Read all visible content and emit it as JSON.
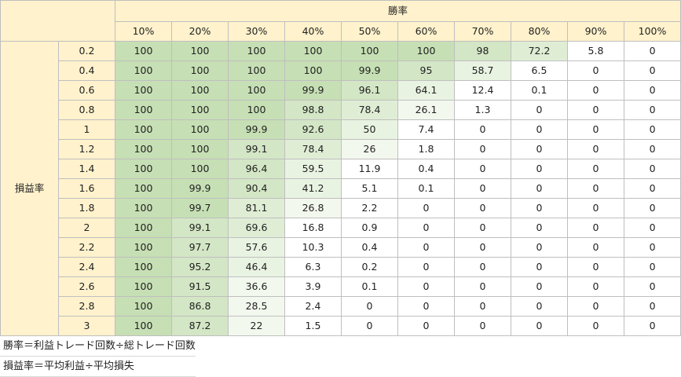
{
  "table": {
    "col_group_label": "勝率",
    "row_group_label": "損益率",
    "columns": [
      "10%",
      "20%",
      "30%",
      "40%",
      "50%",
      "60%",
      "70%",
      "80%",
      "90%",
      "100%"
    ],
    "rows": [
      {
        "ratio": "0.2",
        "values": [
          "100",
          "100",
          "100",
          "100",
          "100",
          "100",
          "98",
          "72.2",
          "5.8",
          "0"
        ]
      },
      {
        "ratio": "0.4",
        "values": [
          "100",
          "100",
          "100",
          "100",
          "99.9",
          "95",
          "58.7",
          "6.5",
          "0",
          "0"
        ]
      },
      {
        "ratio": "0.6",
        "values": [
          "100",
          "100",
          "100",
          "99.9",
          "96.1",
          "64.1",
          "12.4",
          "0.1",
          "0",
          "0"
        ]
      },
      {
        "ratio": "0.8",
        "values": [
          "100",
          "100",
          "100",
          "98.8",
          "78.4",
          "26.1",
          "1.3",
          "0",
          "0",
          "0"
        ]
      },
      {
        "ratio": "1",
        "values": [
          "100",
          "100",
          "99.9",
          "92.6",
          "50",
          "7.4",
          "0",
          "0",
          "0",
          "0"
        ]
      },
      {
        "ratio": "1.2",
        "values": [
          "100",
          "100",
          "99.1",
          "78.4",
          "26",
          "1.8",
          "0",
          "0",
          "0",
          "0"
        ]
      },
      {
        "ratio": "1.4",
        "values": [
          "100",
          "100",
          "96.4",
          "59.5",
          "11.9",
          "0.4",
          "0",
          "0",
          "0",
          "0"
        ]
      },
      {
        "ratio": "1.6",
        "values": [
          "100",
          "99.9",
          "90.4",
          "41.2",
          "5.1",
          "0.1",
          "0",
          "0",
          "0",
          "0"
        ]
      },
      {
        "ratio": "1.8",
        "values": [
          "100",
          "99.7",
          "81.1",
          "26.8",
          "2.2",
          "0",
          "0",
          "0",
          "0",
          "0"
        ]
      },
      {
        "ratio": "2",
        "values": [
          "100",
          "99.1",
          "69.6",
          "16.8",
          "0.9",
          "0",
          "0",
          "0",
          "0",
          "0"
        ]
      },
      {
        "ratio": "2.2",
        "values": [
          "100",
          "97.7",
          "57.6",
          "10.3",
          "0.4",
          "0",
          "0",
          "0",
          "0",
          "0"
        ]
      },
      {
        "ratio": "2.4",
        "values": [
          "100",
          "95.2",
          "46.4",
          "6.3",
          "0.2",
          "0",
          "0",
          "0",
          "0",
          "0"
        ]
      },
      {
        "ratio": "2.6",
        "values": [
          "100",
          "91.5",
          "36.6",
          "3.9",
          "0.1",
          "0",
          "0",
          "0",
          "0",
          "0"
        ]
      },
      {
        "ratio": "2.8",
        "values": [
          "100",
          "86.8",
          "28.5",
          "2.4",
          "0",
          "0",
          "0",
          "0",
          "0",
          "0"
        ]
      },
      {
        "ratio": "3",
        "values": [
          "100",
          "87.2",
          "22",
          "1.5",
          "0",
          "0",
          "0",
          "0",
          "0",
          "0"
        ]
      }
    ]
  },
  "notes": [
    "勝率＝利益トレード回数÷総トレード回数",
    "損益率＝平均利益÷平均損失"
  ],
  "colors": {
    "header": "#fff2cc",
    "shade_highest": "#c6dfb4",
    "shade_lowest": "#f3f8ee",
    "grid_line": "#bfbfbf"
  }
}
